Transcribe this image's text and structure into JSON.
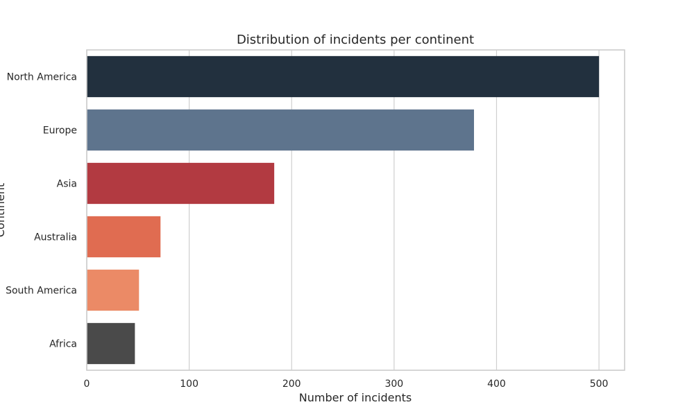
{
  "chart_data": {
    "type": "bar",
    "orientation": "horizontal",
    "title": "Distribution of incidents per continent",
    "xlabel": "Number of incidents",
    "ylabel": "Continent",
    "categories": [
      "North America",
      "Europe",
      "Asia",
      "Australia",
      "South America",
      "Africa"
    ],
    "values": [
      500,
      378,
      183,
      72,
      51,
      47
    ],
    "colors": [
      "#22303e",
      "#5e748d",
      "#b23a41",
      "#e06c51",
      "#eb8a66",
      "#4a4a4a"
    ],
    "xlim": [
      0,
      525
    ],
    "xticks": [
      0,
      100,
      200,
      300,
      400,
      500
    ],
    "grid": "vertical",
    "legend": "none"
  }
}
